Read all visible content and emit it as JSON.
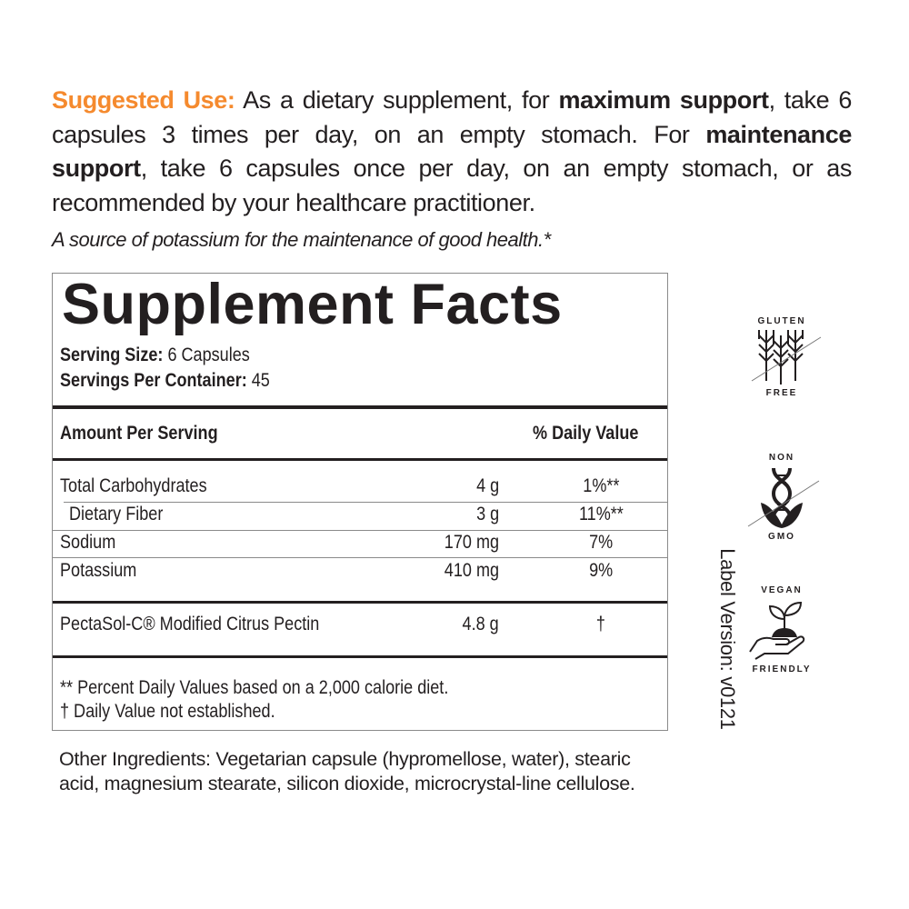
{
  "suggested_use": {
    "label": "Suggested Use:",
    "t1": " As a dietary supplement, for ",
    "b1": "maximum support",
    "t2": ", take 6 capsules 3 times per day, on an empty stomach. For ",
    "b2": "maintenance support",
    "t3": ", take 6 capsules once per day, on an empty stomach, or as recommended by your healthcare practitioner."
  },
  "claim": "A source of potassium for the maintenance of good health.*",
  "facts": {
    "title": "Supplement Facts",
    "serving_size_label": "Serving Size:",
    "serving_size_value": " 6 Capsules",
    "servings_label": "Servings Per Container:",
    "servings_value": " 45",
    "header_amount": "Amount Per Serving",
    "header_dv": "% Daily Value",
    "rows": [
      {
        "name": "Total Carbohydrates",
        "amount": "4 g",
        "dv": "1%**"
      },
      {
        "name": "Dietary Fiber",
        "amount": "3 g",
        "dv": "11%**"
      },
      {
        "name": "Sodium",
        "amount": "170 mg",
        "dv": "7%"
      },
      {
        "name": "Potassium",
        "amount": "410 mg",
        "dv": "9%"
      }
    ],
    "proprietary": {
      "name": "PectaSol-C® Modified Citrus Pectin",
      "amount": "4.8 g",
      "dv": "†"
    },
    "footnote1": "** Percent Daily Values based on a 2,000 calorie diet.",
    "footnote2": "† Daily Value not established."
  },
  "label_version": "Label Version: v0121",
  "other_ingredients": {
    "label": "Other Ingredients:",
    "text": " Vegetarian capsule (hypromellose, water), stearic acid, magnesium stearate, silicon dioxide, microcrystal-line cellulose."
  },
  "badges": [
    {
      "top": "GLUTEN",
      "bottom": "FREE",
      "icon": "wheat-crossed-icon"
    },
    {
      "top": "NON",
      "bottom": "GMO",
      "icon": "dna-crossed-icon"
    },
    {
      "top": "VEGAN",
      "bottom": "FRIENDLY",
      "icon": "hand-sprout-icon"
    }
  ],
  "colors": {
    "accent": "#f58a2e",
    "text": "#231f20"
  }
}
